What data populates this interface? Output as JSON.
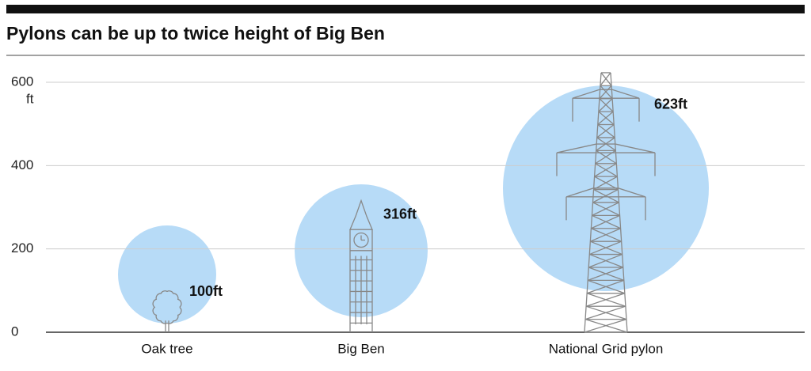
{
  "chart_data": {
    "type": "pictogram",
    "title": "Pylons can be up to twice height of Big Ben",
    "categories": [
      "Oak tree",
      "Big Ben",
      "National Grid pylon"
    ],
    "values": [
      100,
      316,
      623
    ],
    "value_labels": [
      "100ft",
      "316ft",
      "623ft"
    ],
    "ylabel": "ft",
    "ylim": [
      0,
      650
    ],
    "yticks": [
      0,
      200,
      400,
      600
    ],
    "grid": true,
    "color": "#888888"
  }
}
